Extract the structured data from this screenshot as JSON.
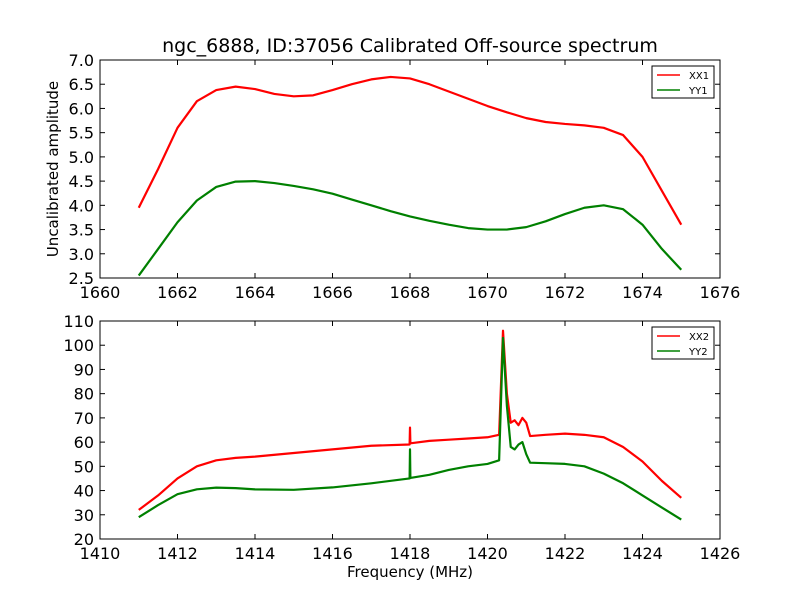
{
  "figure": {
    "title": "ngc_6888, ID:37056 Calibrated Off-source spectrum"
  },
  "chart_data": [
    {
      "type": "line",
      "title": "ngc_6888, ID:37056 Calibrated Off-source spectrum",
      "xlabel": "",
      "ylabel": "Uncalibrated amplitude",
      "xlim": [
        1660,
        1676
      ],
      "ylim": [
        2.5,
        7.0
      ],
      "xticks": [
        "1660",
        "1662",
        "1664",
        "1666",
        "1668",
        "1670",
        "1672",
        "1674",
        "1676"
      ],
      "yticks": [
        "2.5",
        "3.0",
        "3.5",
        "4.0",
        "4.5",
        "5.0",
        "5.5",
        "6.0",
        "6.5",
        "7.0"
      ],
      "grid": false,
      "legend_position": "top-right",
      "series": [
        {
          "name": "XX1",
          "color": "#ff0000",
          "x": [
            1661.0,
            1661.5,
            1662.0,
            1662.5,
            1663.0,
            1663.5,
            1664.0,
            1664.5,
            1665.0,
            1665.5,
            1666.0,
            1666.5,
            1667.0,
            1667.5,
            1668.0,
            1668.5,
            1669.0,
            1669.5,
            1670.0,
            1670.5,
            1671.0,
            1671.5,
            1672.0,
            1672.5,
            1673.0,
            1673.5,
            1674.0,
            1674.5,
            1675.0
          ],
          "y": [
            3.95,
            4.75,
            5.6,
            6.15,
            6.38,
            6.45,
            6.4,
            6.3,
            6.25,
            6.27,
            6.38,
            6.5,
            6.6,
            6.65,
            6.62,
            6.5,
            6.35,
            6.2,
            6.05,
            5.92,
            5.8,
            5.72,
            5.68,
            5.65,
            5.6,
            5.45,
            5.0,
            4.3,
            3.6
          ]
        },
        {
          "name": "YY1",
          "color": "#008000",
          "x": [
            1661.0,
            1661.5,
            1662.0,
            1662.5,
            1663.0,
            1663.5,
            1664.0,
            1664.5,
            1665.0,
            1665.5,
            1666.0,
            1666.5,
            1667.0,
            1667.5,
            1668.0,
            1668.5,
            1669.0,
            1669.5,
            1670.0,
            1670.5,
            1671.0,
            1671.5,
            1672.0,
            1672.5,
            1673.0,
            1673.5,
            1674.0,
            1674.5,
            1675.0
          ],
          "y": [
            2.55,
            3.1,
            3.65,
            4.1,
            4.38,
            4.49,
            4.5,
            4.46,
            4.4,
            4.33,
            4.24,
            4.12,
            4.0,
            3.88,
            3.77,
            3.68,
            3.6,
            3.53,
            3.5,
            3.5,
            3.55,
            3.67,
            3.82,
            3.95,
            4.0,
            3.92,
            3.6,
            3.1,
            2.67
          ]
        }
      ]
    },
    {
      "type": "line",
      "title": "",
      "xlabel": "Frequency (MHz)",
      "ylabel": "",
      "xlim": [
        1410,
        1426
      ],
      "ylim": [
        20,
        110
      ],
      "xticks": [
        "1410",
        "1412",
        "1414",
        "1416",
        "1418",
        "1420",
        "1422",
        "1424",
        "1426"
      ],
      "yticks": [
        "20",
        "30",
        "40",
        "50",
        "60",
        "70",
        "80",
        "90",
        "100",
        "110"
      ],
      "grid": false,
      "legend_position": "top-right",
      "series": [
        {
          "name": "XX2",
          "color": "#ff0000",
          "x": [
            1411.0,
            1411.5,
            1412.0,
            1412.5,
            1413.0,
            1413.5,
            1414.0,
            1415.0,
            1416.0,
            1417.0,
            1417.99,
            1418.0,
            1418.01,
            1418.5,
            1419.0,
            1419.5,
            1420.0,
            1420.3,
            1420.4,
            1420.5,
            1420.6,
            1420.7,
            1420.8,
            1420.9,
            1421.0,
            1421.1,
            1421.5,
            1422.0,
            1422.5,
            1423.0,
            1423.5,
            1424.0,
            1424.5,
            1425.0
          ],
          "y": [
            32,
            38,
            45,
            50,
            52.5,
            53.5,
            54,
            55.5,
            57,
            58.5,
            59,
            66,
            59.5,
            60.5,
            61,
            61.5,
            62,
            63,
            106,
            80,
            68,
            69,
            67,
            70,
            68,
            62.5,
            63,
            63.5,
            63,
            62,
            58,
            52,
            44,
            37
          ]
        },
        {
          "name": "YY2",
          "color": "#008000",
          "x": [
            1411.0,
            1411.5,
            1412.0,
            1412.5,
            1413.0,
            1413.5,
            1414.0,
            1415.0,
            1416.0,
            1417.0,
            1417.99,
            1418.0,
            1418.01,
            1418.5,
            1419.0,
            1419.5,
            1420.0,
            1420.3,
            1420.4,
            1420.5,
            1420.6,
            1420.7,
            1420.8,
            1420.9,
            1421.0,
            1421.1,
            1421.5,
            1422.0,
            1422.5,
            1423.0,
            1423.5,
            1424.0,
            1424.5,
            1425.0
          ],
          "y": [
            29,
            34,
            38.5,
            40.5,
            41.2,
            41,
            40.5,
            40.3,
            41.3,
            43,
            45,
            57,
            45.2,
            46.5,
            48.5,
            50,
            51,
            52.5,
            103,
            75,
            58,
            57,
            59,
            60,
            55,
            51.5,
            51.3,
            51,
            50,
            47,
            43,
            38,
            33,
            28
          ]
        }
      ]
    }
  ]
}
